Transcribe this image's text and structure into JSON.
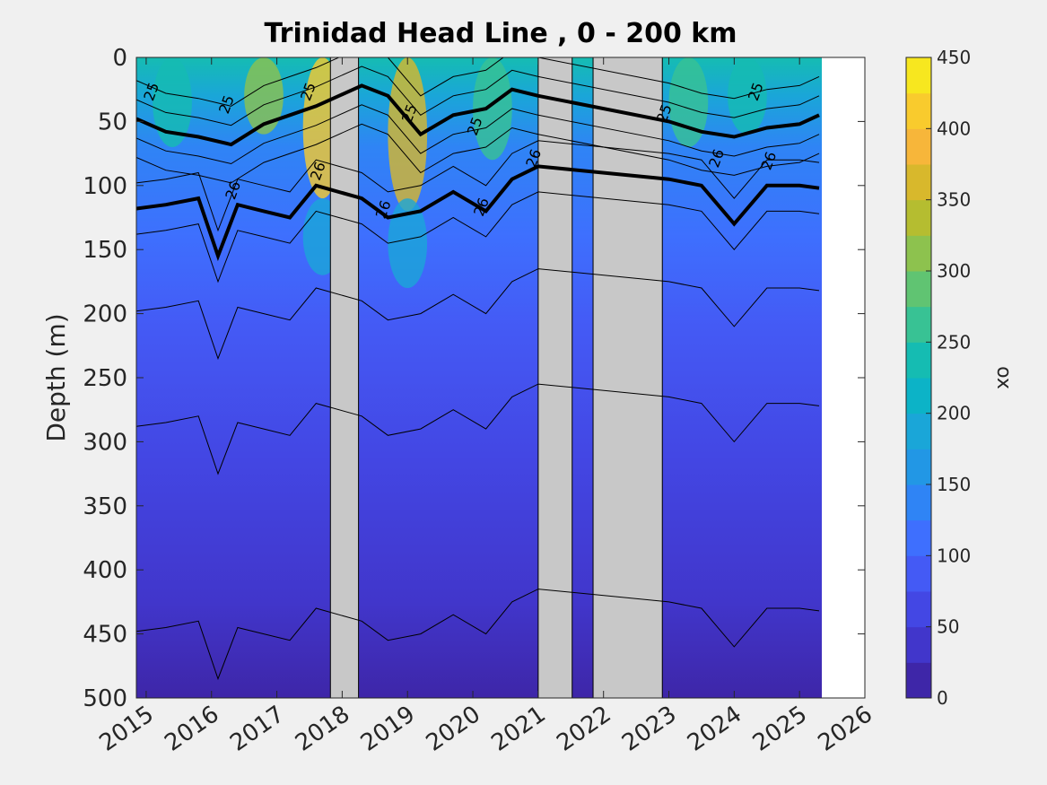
{
  "chart_data": {
    "type": "heatmap",
    "title": "Trinidad Head Line , 0 - 200 km",
    "ylabel": "Depth (m)",
    "xlabel": "",
    "xlim": [
      2014.85,
      2026
    ],
    "ylim": [
      0,
      500
    ],
    "y_reversed": true,
    "x_ticks": [
      2015,
      2016,
      2017,
      2018,
      2019,
      2020,
      2021,
      2022,
      2023,
      2024,
      2025,
      2026
    ],
    "y_ticks": [
      0,
      50,
      100,
      150,
      200,
      250,
      300,
      350,
      400,
      450,
      500
    ],
    "colorbar": {
      "label": "ox",
      "min": 0,
      "max": 450,
      "ticks": [
        0,
        50,
        100,
        150,
        200,
        250,
        300,
        350,
        400,
        450
      ],
      "colors": [
        "#3e26a8",
        "#4136cb",
        "#4347e4",
        "#445af5",
        "#3e6ffe",
        "#2f84f5",
        "#2297e5",
        "#1aa6d8",
        "#0cb3c7",
        "#15bcb2",
        "#38c294",
        "#60c472",
        "#8dc24e",
        "#b5bd30",
        "#d8b82c",
        "#f7b63a",
        "#f9cb2d",
        "#f7e71f"
      ]
    },
    "data_gaps": [
      {
        "start": 2017.82,
        "end": 2018.25,
        "fill": "gray"
      },
      {
        "start": 2021.0,
        "end": 2021.52,
        "fill": "gray"
      },
      {
        "start": 2021.84,
        "end": 2022.9,
        "fill": "gray"
      },
      {
        "start": 2025.36,
        "end": 2026.0,
        "fill": "none"
      }
    ],
    "isopycnal_labels": [
      "25",
      "26"
    ],
    "isopycnal_25_depth": {
      "x": [
        2014.85,
        2015.3,
        2015.8,
        2016.3,
        2016.8,
        2017.2,
        2017.6,
        2018.3,
        2018.7,
        2019.2,
        2019.7,
        2020.2,
        2020.6,
        2021.0,
        2023.0,
        2023.5,
        2024.0,
        2024.5,
        2025.0,
        2025.3
      ],
      "y": [
        48,
        58,
        62,
        68,
        52,
        45,
        38,
        22,
        30,
        60,
        45,
        40,
        25,
        30,
        50,
        58,
        62,
        55,
        52,
        45
      ]
    },
    "isopycnal_26_depth": {
      "x": [
        2014.85,
        2015.3,
        2015.8,
        2016.1,
        2016.4,
        2016.8,
        2017.2,
        2017.6,
        2018.3,
        2018.7,
        2019.2,
        2019.7,
        2020.2,
        2020.6,
        2021.0,
        2023.0,
        2023.5,
        2024.0,
        2024.5,
        2025.0,
        2025.3
      ],
      "y": [
        118,
        115,
        110,
        155,
        115,
        120,
        125,
        100,
        110,
        125,
        120,
        105,
        120,
        95,
        85,
        95,
        100,
        130,
        100,
        100,
        102
      ]
    }
  }
}
